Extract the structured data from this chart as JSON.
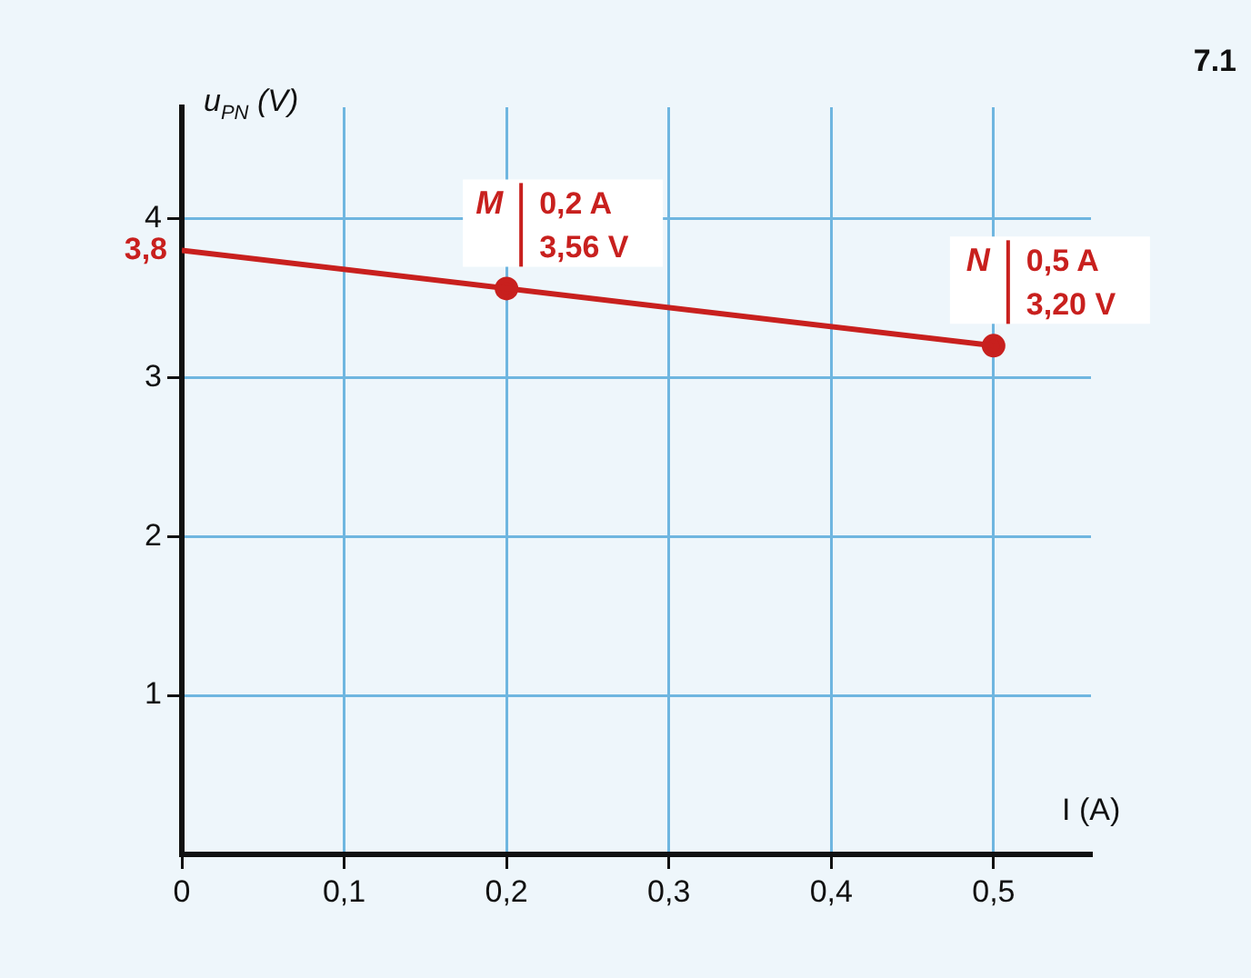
{
  "chart_data": {
    "type": "line",
    "xlabel": "I (A)",
    "ylabel": "u$_{PN}$ (V)",
    "xlim": [
      0,
      0.56
    ],
    "ylim": [
      0,
      4.7
    ],
    "xticks": [
      0,
      {
        "value": 0.1,
        "label": "0,1"
      },
      {
        "value": 0.2,
        "label": "0,2"
      },
      {
        "value": 0.3,
        "label": "0,3"
      },
      {
        "value": 0.4,
        "label": "0,4"
      },
      {
        "value": 0.5,
        "label": "0,5"
      }
    ],
    "yticks": [
      1,
      2,
      3,
      4
    ],
    "grid": true,
    "legend": false,
    "series": [
      {
        "type": "line",
        "color": "#c8201e",
        "x": [
          0,
          0.5
        ],
        "values": [
          3.8,
          3.2
        ],
        "marker": "none"
      },
      {
        "type": "scatter",
        "color": "#c8201e",
        "x": [
          0.2,
          0.5
        ],
        "values": [
          3.56,
          3.2
        ],
        "marker": "circle"
      }
    ],
    "annotations": [
      {
        "text": "3,8",
        "x": 0,
        "y": 3.8
      },
      {
        "text": "M",
        "x": 0.2,
        "y": 3.56
      },
      {
        "text": "0,2 A",
        "x": 0.2,
        "y": 3.56
      },
      {
        "text": "3,56 V",
        "x": 0.2,
        "y": 3.56
      },
      {
        "text": "N",
        "x": 0.5,
        "y": 3.2
      },
      {
        "text": "0,5 A",
        "x": 0.5,
        "y": 3.2
      },
      {
        "text": "3,20 V",
        "x": 0.5,
        "y": 3.2
      },
      "7.1"
    ]
  }
}
